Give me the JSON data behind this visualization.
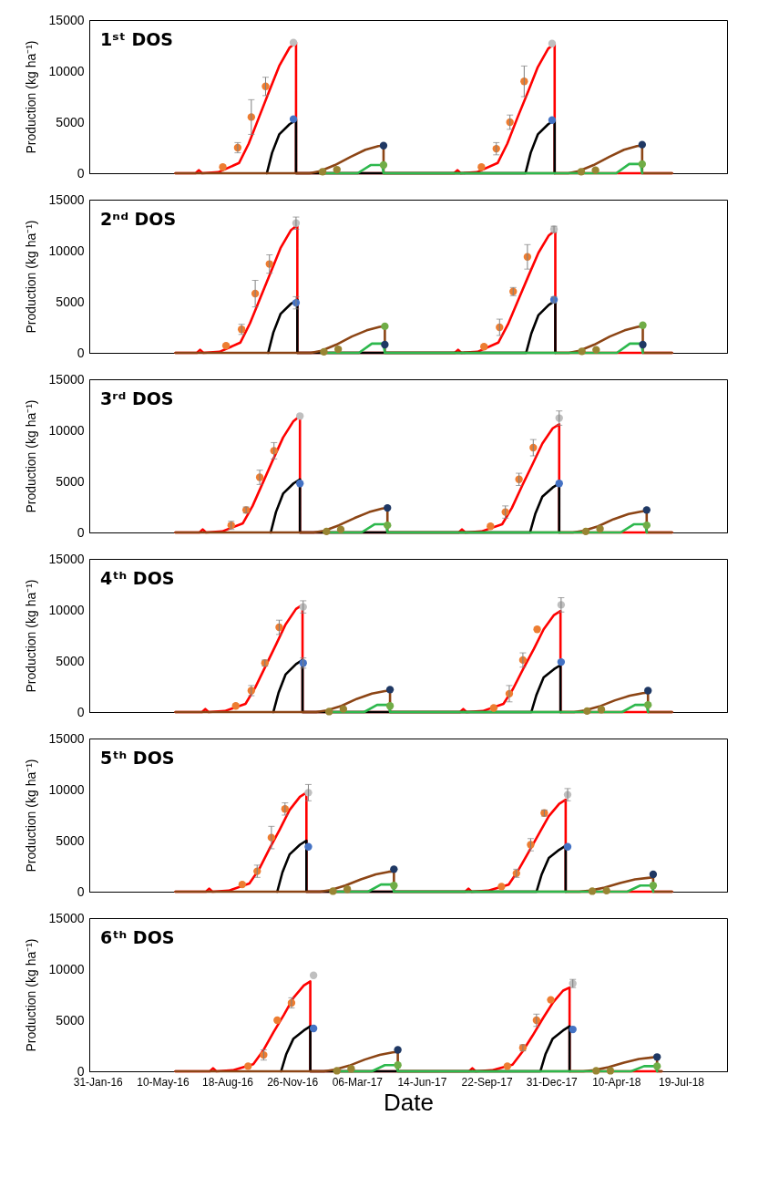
{
  "chart_data": [
    {
      "type": "line",
      "title": "1ˢᵗ DOS",
      "ylabel": "Production (kg ha⁻¹)",
      "tick_labels": "y",
      "xlim": [
        "2016-01-18",
        "2018-09-28"
      ],
      "ylim": [
        0,
        15000
      ],
      "yticks": [
        0,
        5000,
        10000,
        15000
      ],
      "series": [
        {
          "type": "line",
          "color": "#ff0000",
          "x": [
            "2016-05-30",
            "2016-06-30",
            "2016-07-05",
            "2016-07-10",
            "2016-08-04",
            "2016-09-05",
            "2016-09-20",
            "2016-10-06",
            "2016-10-22",
            "2016-11-06",
            "2016-11-22",
            "2016-12-02",
            "2016-12-02",
            "2017-08-03",
            "2017-08-08",
            "2017-08-13",
            "2017-09-07",
            "2017-10-09",
            "2017-10-24",
            "2017-11-09",
            "2017-11-25",
            "2017-12-10",
            "2017-12-26",
            "2018-01-05",
            "2018-01-05",
            "2018-07-05"
          ],
          "values": [
            0,
            0,
            300,
            0,
            100,
            1000,
            2900,
            5500,
            8100,
            10500,
            12300,
            12800,
            0,
            0,
            300,
            0,
            100,
            1000,
            2900,
            5500,
            8000,
            10400,
            12200,
            12700,
            0,
            0
          ]
        },
        {
          "type": "line",
          "color": "#000000",
          "x": [
            "2016-10-18",
            "2016-10-26",
            "2016-11-06",
            "2016-11-22",
            "2016-12-02",
            "2016-12-02",
            "2017-11-21",
            "2017-11-29",
            "2017-12-10",
            "2017-12-26",
            "2018-01-05",
            "2018-01-05"
          ],
          "values": [
            0,
            2000,
            3800,
            4800,
            5200,
            0,
            0,
            2000,
            3800,
            4800,
            5200,
            0
          ]
        },
        {
          "type": "line",
          "color": "#8c4515",
          "x": [
            "2016-05-30",
            "2016-12-23",
            "2017-01-08",
            "2017-01-31",
            "2017-02-24",
            "2017-03-19",
            "2017-04-08",
            "2017-04-16",
            "2017-04-16",
            "2018-01-26",
            "2018-02-11",
            "2018-03-06",
            "2018-03-30",
            "2018-04-22",
            "2018-05-12",
            "2018-05-20",
            "2018-05-20",
            "2018-07-05"
          ],
          "values": [
            0,
            0,
            200,
            800,
            1600,
            2300,
            2650,
            2700,
            0,
            0,
            200,
            800,
            1600,
            2300,
            2650,
            2700,
            0,
            0
          ]
        },
        {
          "type": "line",
          "color": "#2db84d",
          "x": [
            "2017-01-08",
            "2017-03-07",
            "2017-03-27",
            "2017-04-14",
            "2017-04-16",
            "2018-02-11",
            "2018-04-10",
            "2018-04-30",
            "2018-05-18",
            "2018-05-20"
          ],
          "values": [
            0,
            0,
            800,
            800,
            0,
            0,
            0,
            900,
            900,
            0
          ]
        },
        {
          "type": "scatter",
          "marker": "circle",
          "color": "#ed7d31",
          "x": [
            "2016-08-11",
            "2016-09-03",
            "2016-09-24",
            "2016-10-16",
            "2017-09-14",
            "2017-10-07",
            "2017-10-28",
            "2017-11-19"
          ],
          "values": [
            600,
            2500,
            5500,
            8500,
            600,
            2400,
            5000,
            9000
          ],
          "errors": [
            null,
            500,
            1700,
            900,
            null,
            600,
            700,
            1500
          ]
        },
        {
          "type": "scatter",
          "marker": "circle",
          "color": "#bfbfbf",
          "x": [
            "2016-11-28",
            "2018-01-01"
          ],
          "values": [
            12800,
            12700
          ]
        },
        {
          "type": "scatter",
          "marker": "circle",
          "color": "#4472c4",
          "x": [
            "2016-11-28",
            "2018-01-01"
          ],
          "values": [
            5300,
            5200
          ]
        },
        {
          "type": "scatter",
          "marker": "circle",
          "color": "#1f3864",
          "x": [
            "2017-04-16",
            "2018-05-20"
          ],
          "values": [
            2700,
            2800
          ]
        },
        {
          "type": "scatter",
          "marker": "circle",
          "color": "#70ad47",
          "x": [
            "2017-04-16",
            "2018-05-20"
          ],
          "values": [
            800,
            900
          ]
        },
        {
          "type": "scatter",
          "marker": "circle",
          "color": "#998433",
          "x": [
            "2017-01-12",
            "2017-02-03",
            "2018-02-15",
            "2018-03-09"
          ],
          "values": [
            150,
            350,
            150,
            300
          ]
        }
      ]
    },
    {
      "type": "line",
      "title": "2ⁿᵈ DOS",
      "ylabel": "Production (kg ha⁻¹)",
      "tick_labels": "y",
      "xlim": [
        "2016-01-18",
        "2018-09-28"
      ],
      "ylim": [
        0,
        15000
      ],
      "yticks": [
        0,
        5000,
        10000,
        15000
      ],
      "series": [
        {
          "type": "line",
          "color": "#ff0000",
          "x": [
            "2016-05-30",
            "2016-07-02",
            "2016-07-07",
            "2016-07-12",
            "2016-08-06",
            "2016-09-07",
            "2016-09-22",
            "2016-10-08",
            "2016-10-24",
            "2016-11-08",
            "2016-11-24",
            "2016-12-04",
            "2016-12-04",
            "2017-08-04",
            "2017-08-09",
            "2017-08-14",
            "2017-09-08",
            "2017-10-10",
            "2017-10-25",
            "2017-11-10",
            "2017-11-26",
            "2017-12-11",
            "2017-12-27",
            "2018-01-06",
            "2018-01-06",
            "2018-07-05"
          ],
          "values": [
            0,
            0,
            300,
            0,
            100,
            1000,
            2900,
            5400,
            7900,
            10250,
            12000,
            12500,
            0,
            0,
            300,
            0,
            100,
            1000,
            2800,
            5200,
            7600,
            9800,
            11500,
            12000,
            0,
            0
          ]
        },
        {
          "type": "line",
          "color": "#000000",
          "x": [
            "2016-10-20",
            "2016-10-28",
            "2016-11-08",
            "2016-11-24",
            "2016-12-04",
            "2016-12-04",
            "2017-11-22",
            "2017-11-30",
            "2017-12-11",
            "2017-12-27",
            "2018-01-06",
            "2018-01-06"
          ],
          "values": [
            0,
            2000,
            3800,
            4800,
            5200,
            0,
            0,
            1900,
            3700,
            4700,
            5100,
            0
          ]
        },
        {
          "type": "line",
          "color": "#8c4515",
          "x": [
            "2016-05-30",
            "2016-12-25",
            "2017-01-10",
            "2017-02-02",
            "2017-02-26",
            "2017-03-21",
            "2017-04-10",
            "2017-04-18",
            "2017-04-18",
            "2018-01-27",
            "2018-02-12",
            "2018-03-07",
            "2018-03-31",
            "2018-04-23",
            "2018-05-13",
            "2018-05-21",
            "2018-05-21",
            "2018-07-05"
          ],
          "values": [
            0,
            0,
            200,
            800,
            1600,
            2200,
            2550,
            2600,
            0,
            0,
            200,
            800,
            1600,
            2200,
            2550,
            2600,
            0,
            0
          ]
        },
        {
          "type": "line",
          "color": "#2db84d",
          "x": [
            "2017-01-10",
            "2017-03-09",
            "2017-03-29",
            "2017-04-16",
            "2017-04-18",
            "2018-02-12",
            "2018-04-11",
            "2018-05-01",
            "2018-05-19",
            "2018-05-21"
          ],
          "values": [
            0,
            0,
            900,
            900,
            0,
            0,
            0,
            900,
            900,
            0
          ]
        },
        {
          "type": "scatter",
          "marker": "circle",
          "color": "#ed7d31",
          "x": [
            "2016-08-16",
            "2016-09-09",
            "2016-09-30",
            "2016-10-22",
            "2017-09-18",
            "2017-10-12",
            "2017-11-02",
            "2017-11-24"
          ],
          "values": [
            700,
            2300,
            5800,
            8700,
            600,
            2500,
            6000,
            9400
          ],
          "errors": [
            null,
            500,
            1300,
            900,
            null,
            800,
            400,
            1200
          ]
        },
        {
          "type": "scatter",
          "marker": "circle",
          "color": "#bfbfbf",
          "x": [
            "2016-12-02",
            "2018-01-04"
          ],
          "values": [
            12700,
            12100
          ],
          "errors": [
            600,
            300
          ]
        },
        {
          "type": "scatter",
          "marker": "circle",
          "color": "#4472c4",
          "x": [
            "2016-12-02",
            "2018-01-04"
          ],
          "values": [
            4900,
            5200
          ],
          "errors": [
            600,
            300
          ]
        },
        {
          "type": "scatter",
          "marker": "circle",
          "color": "#1f3864",
          "x": [
            "2017-04-18",
            "2018-05-21"
          ],
          "values": [
            800,
            800
          ]
        },
        {
          "type": "scatter",
          "marker": "circle",
          "color": "#70ad47",
          "x": [
            "2017-04-18",
            "2018-05-21"
          ],
          "values": [
            2600,
            2700
          ]
        },
        {
          "type": "scatter",
          "marker": "circle",
          "color": "#998433",
          "x": [
            "2017-01-14",
            "2017-02-05",
            "2018-02-16",
            "2018-03-10"
          ],
          "values": [
            100,
            350,
            150,
            300
          ]
        }
      ]
    },
    {
      "type": "line",
      "title": "3ʳᵈ DOS",
      "ylabel": "Production (kg ha⁻¹)",
      "tick_labels": "y",
      "xlim": [
        "2016-01-18",
        "2018-09-28"
      ],
      "ylim": [
        0,
        15000
      ],
      "yticks": [
        0,
        5000,
        10000,
        15000
      ],
      "series": [
        {
          "type": "line",
          "color": "#ff0000",
          "x": [
            "2016-05-30",
            "2016-07-06",
            "2016-07-11",
            "2016-07-16",
            "2016-08-10",
            "2016-09-11",
            "2016-09-26",
            "2016-10-12",
            "2016-10-28",
            "2016-11-12",
            "2016-11-28",
            "2016-12-08",
            "2016-12-08",
            "2017-08-10",
            "2017-08-15",
            "2017-08-20",
            "2017-09-14",
            "2017-10-16",
            "2017-10-31",
            "2017-11-16",
            "2017-12-02",
            "2017-12-17",
            "2018-01-02",
            "2018-01-12",
            "2018-01-12",
            "2018-07-05"
          ],
          "values": [
            0,
            0,
            300,
            0,
            100,
            900,
            2600,
            4900,
            7200,
            9300,
            10900,
            11400,
            0,
            0,
            300,
            0,
            100,
            800,
            2400,
            4600,
            6700,
            8700,
            10200,
            10600,
            0,
            0
          ]
        },
        {
          "type": "line",
          "color": "#000000",
          "x": [
            "2016-10-24",
            "2016-11-01",
            "2016-11-12",
            "2016-11-28",
            "2016-12-08",
            "2016-12-08",
            "2017-11-28",
            "2017-12-06",
            "2017-12-17",
            "2018-01-02",
            "2018-01-12",
            "2018-01-12"
          ],
          "values": [
            0,
            2000,
            3800,
            4800,
            5200,
            0,
            0,
            1800,
            3500,
            4400,
            4800,
            0
          ]
        },
        {
          "type": "line",
          "color": "#8c4515",
          "x": [
            "2016-05-30",
            "2016-12-29",
            "2017-01-14",
            "2017-02-06",
            "2017-03-02",
            "2017-03-25",
            "2017-04-14",
            "2017-04-22",
            "2017-04-22",
            "2018-02-02",
            "2018-02-18",
            "2018-03-13",
            "2018-04-06",
            "2018-04-29",
            "2018-05-19",
            "2018-05-27",
            "2018-05-27",
            "2018-07-05"
          ],
          "values": [
            0,
            0,
            150,
            700,
            1400,
            2000,
            2350,
            2400,
            0,
            0,
            150,
            600,
            1300,
            1800,
            2050,
            2100,
            0,
            0
          ]
        },
        {
          "type": "line",
          "color": "#2db84d",
          "x": [
            "2017-01-14",
            "2017-03-13",
            "2017-04-02",
            "2017-04-20",
            "2017-04-22",
            "2018-02-18",
            "2018-04-17",
            "2018-05-07",
            "2018-05-25",
            "2018-05-27"
          ],
          "values": [
            0,
            0,
            800,
            800,
            0,
            0,
            0,
            800,
            800,
            0
          ]
        },
        {
          "type": "scatter",
          "marker": "circle",
          "color": "#ed7d31",
          "x": [
            "2016-08-24",
            "2016-09-16",
            "2016-10-07",
            "2016-10-29",
            "2017-09-28",
            "2017-10-21",
            "2017-11-11",
            "2017-12-03"
          ],
          "values": [
            700,
            2200,
            5400,
            8000,
            600,
            2000,
            5200,
            8300
          ],
          "errors": [
            400,
            300,
            700,
            800,
            null,
            600,
            600,
            800
          ]
        },
        {
          "type": "scatter",
          "marker": "circle",
          "color": "#bfbfbf",
          "x": [
            "2016-12-08",
            "2018-01-12"
          ],
          "values": [
            11400,
            11200
          ],
          "errors": [
            null,
            700
          ]
        },
        {
          "type": "scatter",
          "marker": "circle",
          "color": "#4472c4",
          "x": [
            "2016-12-08",
            "2018-01-12"
          ],
          "values": [
            4800,
            4800
          ]
        },
        {
          "type": "scatter",
          "marker": "circle",
          "color": "#1f3864",
          "x": [
            "2017-04-22",
            "2018-05-27"
          ],
          "values": [
            2400,
            2200
          ]
        },
        {
          "type": "scatter",
          "marker": "circle",
          "color": "#70ad47",
          "x": [
            "2017-04-22",
            "2018-05-27"
          ],
          "values": [
            700,
            700
          ]
        },
        {
          "type": "scatter",
          "marker": "circle",
          "color": "#998433",
          "x": [
            "2017-01-18",
            "2017-02-09",
            "2018-02-22",
            "2018-03-16"
          ],
          "values": [
            100,
            300,
            100,
            350
          ]
        }
      ]
    },
    {
      "type": "line",
      "title": "4ᵗʰ DOS",
      "ylabel": "Production (kg ha⁻¹)",
      "tick_labels": "y",
      "xlim": [
        "2016-01-18",
        "2018-09-28"
      ],
      "ylim": [
        0,
        15000
      ],
      "yticks": [
        0,
        5000,
        10000,
        15000
      ],
      "series": [
        {
          "type": "line",
          "color": "#ff0000",
          "x": [
            "2016-05-30",
            "2016-07-10",
            "2016-07-15",
            "2016-07-20",
            "2016-08-14",
            "2016-09-15",
            "2016-09-30",
            "2016-10-16",
            "2016-11-01",
            "2016-11-16",
            "2016-12-02",
            "2016-12-12",
            "2016-12-12",
            "2017-08-12",
            "2017-08-17",
            "2017-08-22",
            "2017-09-16",
            "2017-10-18",
            "2017-11-02",
            "2017-11-18",
            "2017-12-04",
            "2017-12-19",
            "2018-01-04",
            "2018-01-14",
            "2018-01-14",
            "2018-07-05"
          ],
          "values": [
            0,
            0,
            300,
            0,
            100,
            800,
            2400,
            4500,
            6600,
            8600,
            10100,
            10500,
            0,
            0,
            300,
            0,
            100,
            800,
            2300,
            4300,
            6200,
            8100,
            9500,
            9900,
            0,
            0
          ]
        },
        {
          "type": "line",
          "color": "#000000",
          "x": [
            "2016-10-28",
            "2016-11-05",
            "2016-11-16",
            "2016-12-02",
            "2016-12-12",
            "2016-12-12",
            "2017-11-30",
            "2017-12-08",
            "2017-12-19",
            "2018-01-04",
            "2018-01-14",
            "2018-01-14"
          ],
          "values": [
            0,
            1900,
            3700,
            4700,
            5100,
            0,
            0,
            1700,
            3400,
            4200,
            4600,
            0
          ]
        },
        {
          "type": "line",
          "color": "#8c4515",
          "x": [
            "2016-05-30",
            "2017-01-02",
            "2017-01-18",
            "2017-02-10",
            "2017-03-06",
            "2017-03-29",
            "2017-04-18",
            "2017-04-26",
            "2017-04-26",
            "2018-02-04",
            "2018-02-20",
            "2018-03-15",
            "2018-04-08",
            "2018-05-01",
            "2018-05-21",
            "2018-05-29",
            "2018-05-29",
            "2018-07-05"
          ],
          "values": [
            0,
            0,
            150,
            600,
            1300,
            1800,
            2050,
            2100,
            0,
            0,
            150,
            550,
            1150,
            1600,
            1850,
            1900,
            0,
            0
          ]
        },
        {
          "type": "line",
          "color": "#2db84d",
          "x": [
            "2017-01-18",
            "2017-03-17",
            "2017-04-06",
            "2017-04-24",
            "2017-04-26",
            "2018-02-20",
            "2018-04-19",
            "2018-05-09",
            "2018-05-27",
            "2018-05-29"
          ],
          "values": [
            0,
            0,
            700,
            700,
            0,
            0,
            0,
            700,
            700,
            0
          ]
        },
        {
          "type": "scatter",
          "marker": "circle",
          "color": "#ed7d31",
          "x": [
            "2016-08-31",
            "2016-09-24",
            "2016-10-15",
            "2016-11-06",
            "2017-10-03",
            "2017-10-27",
            "2017-11-17",
            "2017-12-09"
          ],
          "values": [
            600,
            2100,
            4800,
            8300,
            400,
            1800,
            5100,
            8100
          ],
          "errors": [
            null,
            500,
            300,
            700,
            null,
            800,
            700,
            null
          ]
        },
        {
          "type": "scatter",
          "marker": "circle",
          "color": "#bfbfbf",
          "x": [
            "2016-12-13",
            "2018-01-15"
          ],
          "values": [
            10300,
            10500
          ],
          "errors": [
            600,
            700
          ]
        },
        {
          "type": "scatter",
          "marker": "circle",
          "color": "#4472c4",
          "x": [
            "2016-12-13",
            "2018-01-15"
          ],
          "values": [
            4800,
            4900
          ],
          "errors": [
            500,
            null
          ]
        },
        {
          "type": "scatter",
          "marker": "circle",
          "color": "#1f3864",
          "x": [
            "2017-04-26",
            "2018-05-29"
          ],
          "values": [
            2200,
            2100
          ]
        },
        {
          "type": "scatter",
          "marker": "circle",
          "color": "#70ad47",
          "x": [
            "2017-04-26",
            "2018-05-29"
          ],
          "values": [
            600,
            700
          ]
        },
        {
          "type": "scatter",
          "marker": "circle",
          "color": "#998433",
          "x": [
            "2017-01-22",
            "2017-02-13",
            "2018-02-24",
            "2018-03-18"
          ],
          "values": [
            50,
            300,
            100,
            250
          ]
        }
      ]
    },
    {
      "type": "line",
      "title": "5ᵗʰ DOS",
      "ylabel": "Production (kg ha⁻¹)",
      "tick_labels": "y",
      "xlim": [
        "2016-01-18",
        "2018-09-28"
      ],
      "ylim": [
        0,
        15000
      ],
      "yticks": [
        0,
        5000,
        10000,
        15000
      ],
      "series": [
        {
          "type": "line",
          "color": "#ff0000",
          "x": [
            "2016-05-30",
            "2016-07-16",
            "2016-07-21",
            "2016-07-26",
            "2016-08-20",
            "2016-09-21",
            "2016-10-06",
            "2016-10-22",
            "2016-11-07",
            "2016-11-22",
            "2016-12-08",
            "2016-12-18",
            "2016-12-18",
            "2017-08-20",
            "2017-08-25",
            "2017-08-30",
            "2017-09-24",
            "2017-10-26",
            "2017-11-10",
            "2017-11-26",
            "2017-12-12",
            "2017-12-27",
            "2018-01-12",
            "2018-01-22",
            "2018-01-22",
            "2018-07-05"
          ],
          "values": [
            0,
            0,
            300,
            0,
            100,
            800,
            2200,
            4200,
            6100,
            8000,
            9300,
            9700,
            0,
            0,
            300,
            0,
            100,
            700,
            2100,
            3900,
            5700,
            7400,
            8600,
            9000,
            0,
            0
          ]
        },
        {
          "type": "line",
          "color": "#000000",
          "x": [
            "2016-11-03",
            "2016-11-11",
            "2016-11-22",
            "2016-12-08",
            "2016-12-18",
            "2016-12-18",
            "2017-12-08",
            "2017-12-16",
            "2017-12-27",
            "2018-01-12",
            "2018-01-22",
            "2018-01-22"
          ],
          "values": [
            0,
            1900,
            3650,
            4600,
            5000,
            0,
            0,
            1700,
            3300,
            4100,
            4500,
            0
          ]
        },
        {
          "type": "line",
          "color": "#8c4515",
          "x": [
            "2016-05-30",
            "2017-01-08",
            "2017-01-24",
            "2017-02-16",
            "2017-03-12",
            "2017-04-04",
            "2017-04-24",
            "2017-05-02",
            "2017-05-02",
            "2018-02-12",
            "2018-02-28",
            "2018-03-23",
            "2018-04-16",
            "2018-05-09",
            "2018-05-29",
            "2018-06-06",
            "2018-06-06",
            "2018-07-05"
          ],
          "values": [
            0,
            0,
            150,
            600,
            1200,
            1700,
            1950,
            2000,
            0,
            0,
            100,
            400,
            850,
            1200,
            1350,
            1400,
            0,
            0
          ]
        },
        {
          "type": "line",
          "color": "#2db84d",
          "x": [
            "2017-01-24",
            "2017-03-23",
            "2017-04-12",
            "2017-04-30",
            "2017-05-02",
            "2018-02-28",
            "2018-04-27",
            "2018-05-17",
            "2018-06-04",
            "2018-06-06"
          ],
          "values": [
            0,
            0,
            700,
            700,
            0,
            0,
            0,
            600,
            600,
            0
          ]
        },
        {
          "type": "scatter",
          "marker": "circle",
          "color": "#ed7d31",
          "x": [
            "2016-09-10",
            "2016-10-03",
            "2016-10-25",
            "2016-11-15",
            "2017-10-15",
            "2017-11-07",
            "2017-11-29",
            "2017-12-20"
          ],
          "values": [
            700,
            2000,
            5300,
            8100,
            500,
            1800,
            4600,
            7700
          ],
          "errors": [
            null,
            600,
            1100,
            600,
            null,
            400,
            600,
            300
          ]
        },
        {
          "type": "scatter",
          "marker": "circle",
          "color": "#bfbfbf",
          "x": [
            "2016-12-21",
            "2018-01-25"
          ],
          "values": [
            9700,
            9500
          ],
          "errors": [
            800,
            600
          ]
        },
        {
          "type": "scatter",
          "marker": "circle",
          "color": "#4472c4",
          "x": [
            "2016-12-21",
            "2018-01-25"
          ],
          "values": [
            4400,
            4400
          ]
        },
        {
          "type": "scatter",
          "marker": "circle",
          "color": "#1f3864",
          "x": [
            "2017-05-02",
            "2018-06-06"
          ],
          "values": [
            2200,
            1700
          ]
        },
        {
          "type": "scatter",
          "marker": "circle",
          "color": "#70ad47",
          "x": [
            "2017-05-02",
            "2018-06-06"
          ],
          "values": [
            600,
            600
          ]
        },
        {
          "type": "scatter",
          "marker": "circle",
          "color": "#998433",
          "x": [
            "2017-01-28",
            "2017-02-19",
            "2018-03-04",
            "2018-03-26"
          ],
          "values": [
            50,
            250,
            50,
            100
          ]
        }
      ]
    },
    {
      "type": "line",
      "title": "6ᵗʰ DOS",
      "ylabel": "Production (kg ha⁻¹)",
      "xlabel": "Date",
      "xlim": [
        "2016-01-18",
        "2018-09-28"
      ],
      "xticks": [
        {
          "value": "2016-01-31",
          "label": "31-Jan-16"
        },
        {
          "value": "2016-05-10",
          "label": "10-May-16"
        },
        {
          "value": "2016-08-18",
          "label": "18-Aug-16"
        },
        {
          "value": "2016-11-26",
          "label": "26-Nov-16"
        },
        {
          "value": "2017-03-06",
          "label": "06-Mar-17"
        },
        {
          "value": "2017-06-14",
          "label": "14-Jun-17"
        },
        {
          "value": "2017-09-22",
          "label": "22-Sep-17"
        },
        {
          "value": "2017-12-31",
          "label": "31-Dec-17"
        },
        {
          "value": "2018-04-10",
          "label": "10-Apr-18"
        },
        {
          "value": "2018-07-19",
          "label": "19-Jul-18"
        }
      ],
      "ylim": [
        0,
        15000
      ],
      "yticks": [
        0,
        5000,
        10000,
        15000
      ],
      "series": [
        {
          "type": "line",
          "color": "#ff0000",
          "x": [
            "2016-05-30",
            "2016-07-22",
            "2016-07-27",
            "2016-08-01",
            "2016-08-26",
            "2016-09-27",
            "2016-10-12",
            "2016-10-28",
            "2016-11-13",
            "2016-11-28",
            "2016-12-14",
            "2016-12-24",
            "2016-12-24",
            "2017-08-26",
            "2017-08-31",
            "2017-09-05",
            "2017-09-30",
            "2017-11-01",
            "2017-11-16",
            "2017-12-02",
            "2017-12-18",
            "2018-01-02",
            "2018-01-18",
            "2018-01-28",
            "2018-01-28",
            "2018-06-19"
          ],
          "values": [
            0,
            0,
            300,
            0,
            100,
            700,
            2000,
            3800,
            5500,
            7200,
            8400,
            8800,
            0,
            0,
            300,
            0,
            100,
            650,
            1900,
            3500,
            5200,
            6700,
            7900,
            8200,
            0,
            0
          ]
        },
        {
          "type": "line",
          "color": "#000000",
          "x": [
            "2016-11-09",
            "2016-11-17",
            "2016-11-28",
            "2016-12-14",
            "2016-12-24",
            "2016-12-24",
            "2017-12-14",
            "2017-12-22",
            "2018-01-02",
            "2018-01-18",
            "2018-01-28",
            "2018-01-28"
          ],
          "values": [
            0,
            1700,
            3200,
            4000,
            4400,
            0,
            0,
            1700,
            3200,
            4000,
            4400,
            0
          ]
        },
        {
          "type": "line",
          "color": "#8c4515",
          "x": [
            "2016-05-30",
            "2017-01-14",
            "2017-01-30",
            "2017-02-22",
            "2017-03-18",
            "2017-04-10",
            "2017-04-30",
            "2017-05-08",
            "2017-05-08",
            "2018-02-18",
            "2018-03-06",
            "2018-03-29",
            "2018-04-22",
            "2018-05-15",
            "2018-06-04",
            "2018-06-12",
            "2018-06-12",
            "2018-06-19"
          ],
          "values": [
            0,
            0,
            150,
            550,
            1150,
            1600,
            1850,
            1900,
            0,
            0,
            100,
            400,
            850,
            1200,
            1350,
            1400,
            0,
            0
          ]
        },
        {
          "type": "line",
          "color": "#2db84d",
          "x": [
            "2017-01-30",
            "2017-03-29",
            "2017-04-18",
            "2017-05-06",
            "2017-05-08",
            "2018-03-06",
            "2018-05-03",
            "2018-05-23",
            "2018-06-10",
            "2018-06-12"
          ],
          "values": [
            0,
            0,
            600,
            600,
            0,
            0,
            0,
            500,
            500,
            0
          ]
        },
        {
          "type": "scatter",
          "marker": "circle",
          "color": "#ed7d31",
          "x": [
            "2016-09-19",
            "2016-10-13",
            "2016-11-03",
            "2016-11-25",
            "2017-10-24",
            "2017-11-17",
            "2017-12-08",
            "2017-12-30"
          ],
          "values": [
            500,
            1600,
            5000,
            6700,
            500,
            2300,
            5000,
            7000
          ],
          "errors": [
            null,
            500,
            null,
            500,
            null,
            300,
            600,
            null
          ]
        },
        {
          "type": "scatter",
          "marker": "circle",
          "color": "#bfbfbf",
          "x": [
            "2016-12-29",
            "2018-02-02"
          ],
          "values": [
            9400,
            8600
          ],
          "errors": [
            null,
            400
          ]
        },
        {
          "type": "scatter",
          "marker": "circle",
          "color": "#4472c4",
          "x": [
            "2016-12-29",
            "2018-02-02"
          ],
          "values": [
            4200,
            4100
          ]
        },
        {
          "type": "scatter",
          "marker": "circle",
          "color": "#1f3864",
          "x": [
            "2017-05-08",
            "2018-06-12"
          ],
          "values": [
            2100,
            1400
          ]
        },
        {
          "type": "scatter",
          "marker": "circle",
          "color": "#70ad47",
          "x": [
            "2017-05-08",
            "2018-06-12"
          ],
          "values": [
            600,
            500
          ]
        },
        {
          "type": "scatter",
          "marker": "circle",
          "color": "#998433",
          "x": [
            "2017-02-03",
            "2017-02-25",
            "2018-03-10",
            "2018-04-01"
          ],
          "values": [
            50,
            250,
            50,
            50
          ]
        }
      ]
    }
  ]
}
